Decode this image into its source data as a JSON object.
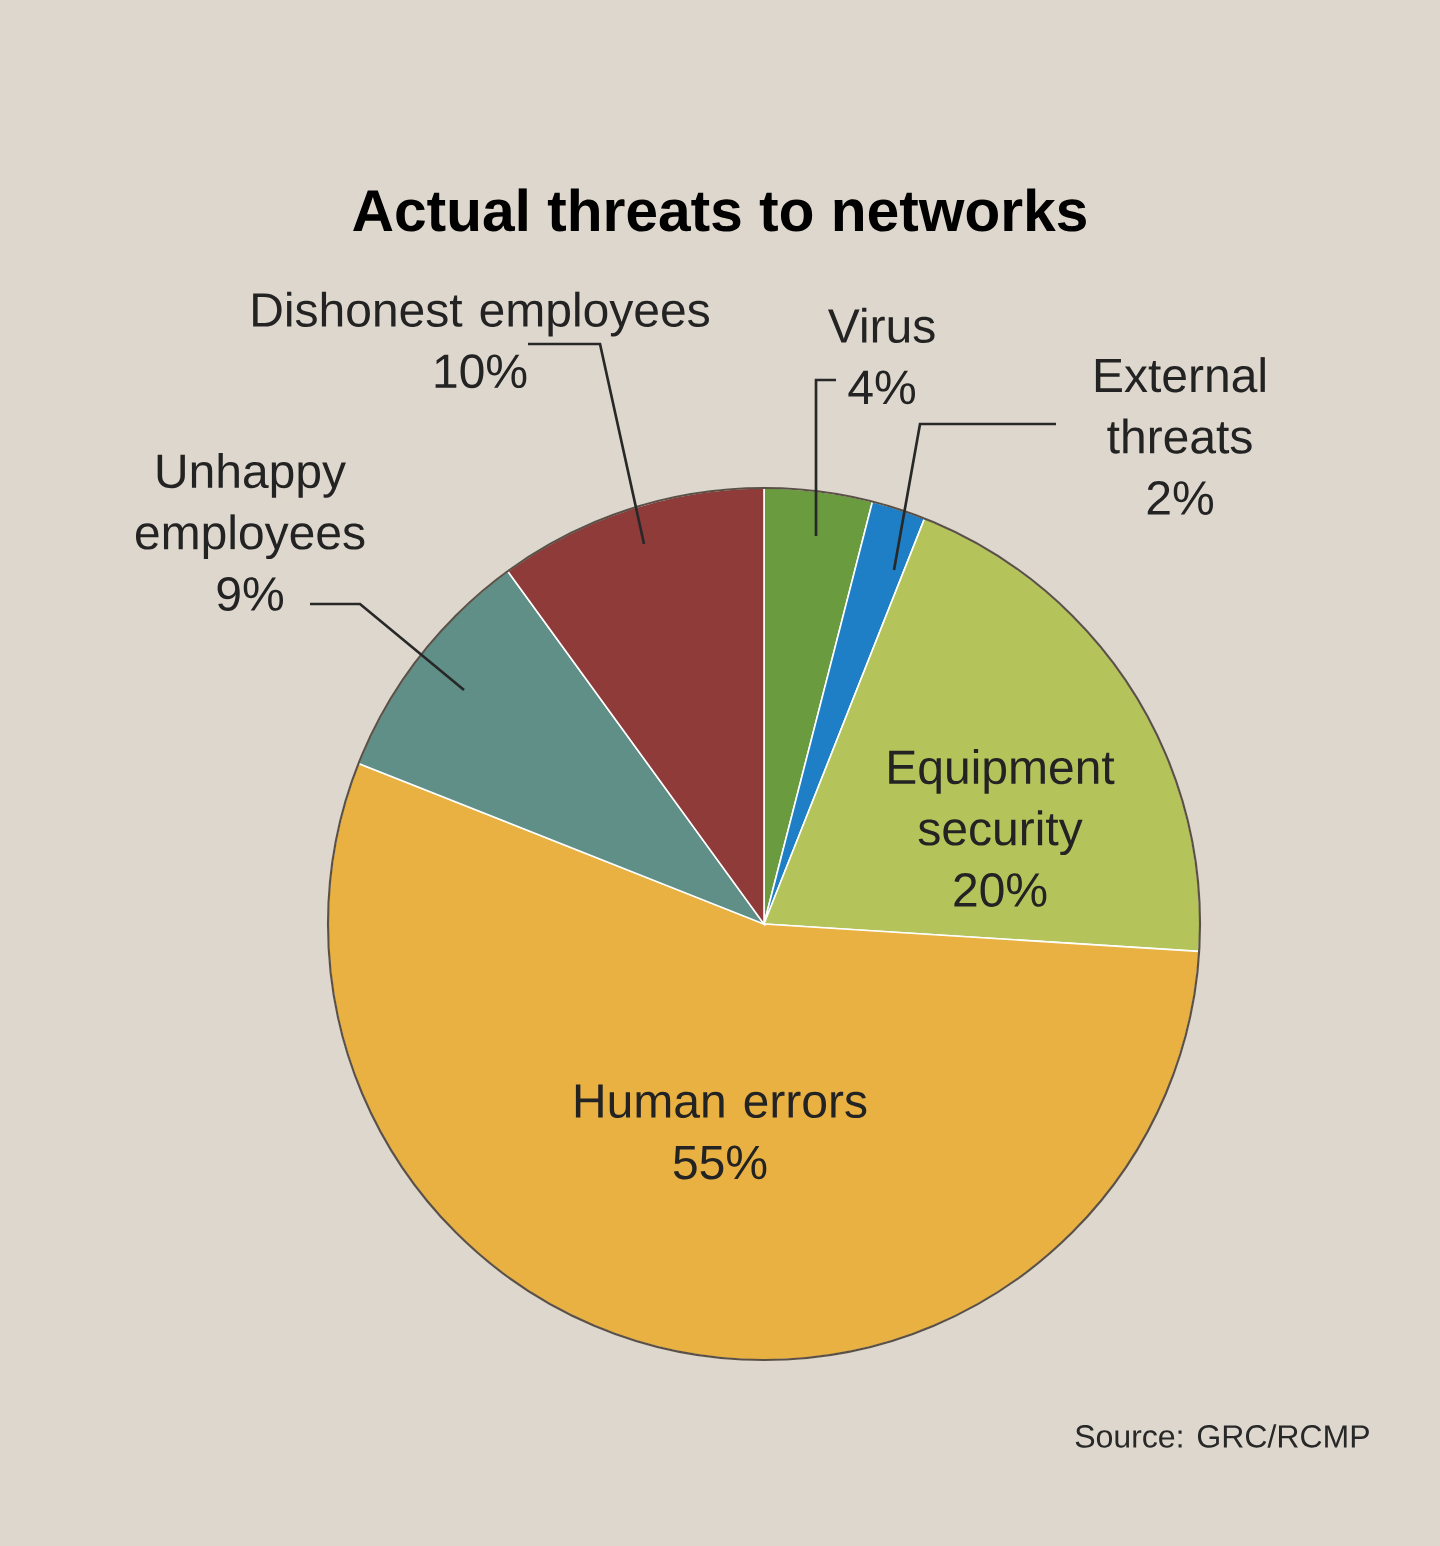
{
  "chart_data": {
    "type": "pie",
    "title": "Actual threats to networks",
    "categories": [
      "Virus",
      "External threats",
      "Equipment security",
      "Human errors",
      "Unhappy employees",
      "Dishonest employees"
    ],
    "values": [
      4,
      2,
      20,
      55,
      9,
      10
    ],
    "value_labels": [
      "4%",
      "2%",
      "20%",
      "55%",
      "9%",
      "10%"
    ],
    "colors": [
      "#6b9b3f",
      "#1f7fc6",
      "#b4c45b",
      "#e8b142",
      "#5f8f87",
      "#8f3b3a"
    ],
    "annotations": [
      "Source: GRC/RCMP"
    ]
  }
}
